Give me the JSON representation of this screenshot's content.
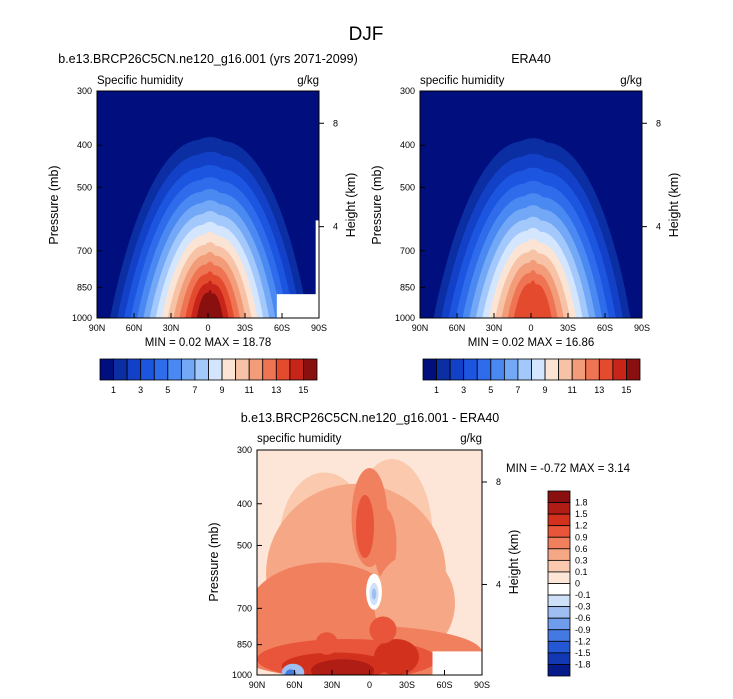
{
  "figure_title": "DJF",
  "chart_data": [
    {
      "type": "heatmap",
      "id": "model",
      "title": "b.e13.BRCP26C5CN.ne120_g16.001 (yrs 2071-2099)",
      "left_label": "Specific humidity",
      "right_label": "g/kg",
      "xlabel": "",
      "ylabel": "Pressure (mb)",
      "ylabel_right": "Height (km)",
      "x_ticks": [
        "90N",
        "60N",
        "30N",
        "0",
        "30S",
        "60S",
        "90S"
      ],
      "y_ticks": [
        "300",
        "400",
        "500",
        "700",
        "850",
        "1000"
      ],
      "y_ticks_right": [
        "8",
        "4"
      ],
      "stats": "MIN =  0.02  MAX = 18.78",
      "min": 0.02,
      "max": 18.78,
      "peak_latitude": 0,
      "surface_peak": 18.78,
      "masked_lower_right": true
    },
    {
      "type": "heatmap",
      "id": "obs",
      "title": "ERA40",
      "left_label": "specific humidity",
      "right_label": "g/kg",
      "xlabel": "",
      "ylabel": "Pressure (mb)",
      "ylabel_right": "Height (km)",
      "x_ticks": [
        "90N",
        "60N",
        "30N",
        "0",
        "30S",
        "60S",
        "90S"
      ],
      "y_ticks": [
        "300",
        "400",
        "500",
        "700",
        "850",
        "1000"
      ],
      "y_ticks_right": [
        "8",
        "4"
      ],
      "stats": "MIN =  0.02  MAX = 16.86",
      "min": 0.02,
      "max": 16.86,
      "peak_latitude": 0,
      "surface_peak": 16.86,
      "masked_lower_right": false
    },
    {
      "type": "heatmap",
      "id": "diff",
      "title": "b.e13.BRCP26C5CN.ne120_g16.001 - ERA40",
      "left_label": "specific humidity",
      "right_label": "g/kg",
      "xlabel": "",
      "ylabel": "Pressure (mb)",
      "ylabel_right": "Height (km)",
      "x_ticks": [
        "90N",
        "60N",
        "30N",
        "0",
        "30S",
        "60S",
        "90S"
      ],
      "y_ticks": [
        "300",
        "400",
        "500",
        "700",
        "850",
        "1000"
      ],
      "y_ticks_right": [
        "8",
        "4"
      ],
      "stats": "MIN = -0.72  MAX =  3.14",
      "min": -0.72,
      "max": 3.14,
      "masked_lower_right": true
    }
  ],
  "colorbars": {
    "abs_labels": [
      "1",
      "3",
      "5",
      "7",
      "9",
      "11",
      "13",
      "15"
    ],
    "abs_levels": [
      1,
      2,
      3,
      4,
      5,
      6,
      7,
      8,
      9,
      10,
      11,
      12,
      13,
      14,
      15
    ],
    "abs_colors": [
      "#000e7e",
      "#0b2ea3",
      "#1241c7",
      "#1c55df",
      "#2e6cec",
      "#4a89f2",
      "#73a8f7",
      "#a3c8fb",
      "#d4e6fd",
      "#fbe4d4",
      "#f7c2a5",
      "#f39c79",
      "#ef7453",
      "#e44a2d",
      "#c7241a",
      "#8a1010"
    ],
    "diff_labels": [
      "1.8",
      "1.5",
      "1.2",
      "0.9",
      "0.6",
      "0.3",
      "0.1",
      "0",
      "-0.1",
      "-0.3",
      "-0.6",
      "-0.9",
      "-1.2",
      "-1.5",
      "-1.8"
    ],
    "diff_colors": [
      "#8a1010",
      "#b01d14",
      "#d2311e",
      "#e8553a",
      "#f1805f",
      "#f6a886",
      "#fac9ae",
      "#fde6d8",
      "#ffffff",
      "#cfe0f9",
      "#9fbff3",
      "#6f9cec",
      "#4579e2",
      "#2457d3",
      "#1238b3",
      "#061a8a"
    ]
  }
}
